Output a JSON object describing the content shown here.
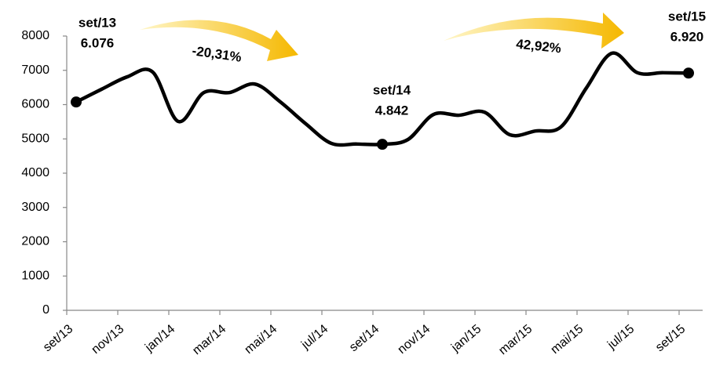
{
  "chart_data": {
    "type": "line",
    "categories": [
      "set/13",
      null,
      "nov/13",
      null,
      "jan/14",
      null,
      "mar/14",
      null,
      "mai/14",
      null,
      "jul/14",
      null,
      "set/14",
      null,
      "nov/14",
      null,
      "jan/15",
      null,
      "mar/15",
      null,
      "mai/15",
      null,
      "jul/15",
      null,
      "set/15"
    ],
    "series": [
      {
        "color": "#000000",
        "values": [
          6076,
          6450,
          6810,
          6950,
          5510,
          6350,
          6350,
          6600,
          6080,
          5440,
          4870,
          4850,
          4842,
          4980,
          5710,
          5690,
          5780,
          5120,
          5230,
          5350,
          6490,
          7500,
          6930,
          6930,
          6920
        ],
        "value_labels": [
          "6.076",
          null,
          null,
          null,
          null,
          null,
          null,
          null,
          null,
          null,
          null,
          null,
          "4.842",
          null,
          null,
          null,
          null,
          null,
          null,
          null,
          null,
          null,
          null,
          null,
          "6.920"
        ],
        "point_labels": [
          "set/13",
          null,
          null,
          null,
          null,
          null,
          null,
          null,
          null,
          null,
          null,
          null,
          "set/14",
          null,
          null,
          null,
          null,
          null,
          null,
          null,
          null,
          null,
          null,
          null,
          "set/15"
        ]
      }
    ],
    "change_labels": [
      "-20,31%",
      "42,92%"
    ],
    "ylim": [
      0,
      8000
    ],
    "yticks": [
      0,
      1000,
      2000,
      3000,
      4000,
      5000,
      6000,
      7000,
      8000
    ],
    "grid": false,
    "arrow_color": "#f5b800"
  }
}
